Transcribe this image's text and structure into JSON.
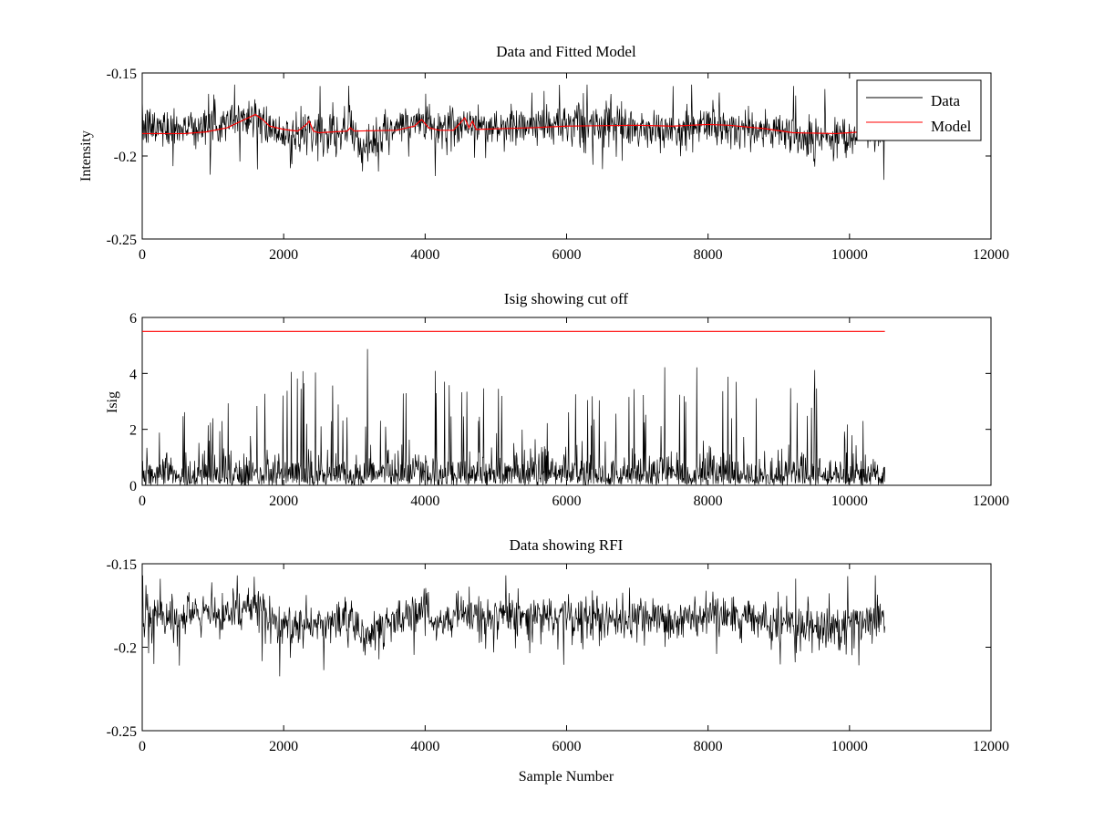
{
  "chart_data": [
    {
      "type": "line",
      "title": "Data and Fitted Model",
      "xlabel": "",
      "ylabel": "Intensity",
      "xlim": [
        0,
        12000
      ],
      "ylim": [
        -0.25,
        -0.15
      ],
      "y_reversed": true,
      "xticks": [
        0,
        2000,
        4000,
        6000,
        8000,
        10000,
        12000
      ],
      "yticks": [
        -0.25,
        -0.2,
        -0.15
      ],
      "grid": false,
      "legend": {
        "placement": "top-right",
        "entries": [
          "Data",
          "Model"
        ]
      },
      "series": [
        {
          "name": "Data",
          "color": "#000000",
          "style": "noise",
          "x_start": 0,
          "x_end": 10500,
          "sample_count": 10500,
          "center_profile": [
            [
              0,
              -0.183
            ],
            [
              1200,
              -0.181
            ],
            [
              1600,
              -0.175
            ],
            [
              1800,
              -0.184
            ],
            [
              2100,
              -0.19
            ],
            [
              2400,
              -0.186
            ],
            [
              2900,
              -0.184
            ],
            [
              3200,
              -0.193
            ],
            [
              3600,
              -0.183
            ],
            [
              3950,
              -0.18
            ],
            [
              4400,
              -0.184
            ],
            [
              4550,
              -0.178
            ],
            [
              4700,
              -0.183
            ],
            [
              6000,
              -0.181
            ],
            [
              7000,
              -0.184
            ],
            [
              7500,
              -0.185
            ],
            [
              8000,
              -0.181
            ],
            [
              8500,
              -0.184
            ],
            [
              9000,
              -0.185
            ],
            [
              9500,
              -0.19
            ],
            [
              10000,
              -0.186
            ],
            [
              10500,
              -0.183
            ]
          ],
          "peak_max": -0.157,
          "peak_min": -0.221
        },
        {
          "name": "Model",
          "color": "#ff0000",
          "points": [
            [
              0,
              -0.1865
            ],
            [
              600,
              -0.1865
            ],
            [
              900,
              -0.1855
            ],
            [
              1200,
              -0.183
            ],
            [
              1450,
              -0.178
            ],
            [
              1600,
              -0.175
            ],
            [
              1700,
              -0.178
            ],
            [
              1800,
              -0.182
            ],
            [
              2000,
              -0.184
            ],
            [
              2200,
              -0.185
            ],
            [
              2320,
              -0.181
            ],
            [
              2360,
              -0.179
            ],
            [
              2420,
              -0.185
            ],
            [
              2500,
              -0.186
            ],
            [
              2900,
              -0.185
            ],
            [
              2940,
              -0.183
            ],
            [
              3000,
              -0.185
            ],
            [
              3600,
              -0.1845
            ],
            [
              3850,
              -0.182
            ],
            [
              3950,
              -0.178
            ],
            [
              4050,
              -0.183
            ],
            [
              4200,
              -0.1845
            ],
            [
              4400,
              -0.1845
            ],
            [
              4500,
              -0.18
            ],
            [
              4560,
              -0.177
            ],
            [
              4620,
              -0.183
            ],
            [
              4670,
              -0.179
            ],
            [
              4720,
              -0.184
            ],
            [
              5500,
              -0.183
            ],
            [
              6000,
              -0.182
            ],
            [
              7000,
              -0.1815
            ],
            [
              7500,
              -0.182
            ],
            [
              8000,
              -0.181
            ],
            [
              8300,
              -0.1815
            ],
            [
              8800,
              -0.1835
            ],
            [
              9200,
              -0.186
            ],
            [
              9800,
              -0.1865
            ],
            [
              10000,
              -0.186
            ],
            [
              10500,
              -0.1845
            ]
          ]
        }
      ]
    },
    {
      "type": "line",
      "title": "Isig showing cut off",
      "xlabel": "",
      "ylabel": "Isig",
      "xlim": [
        0,
        12000
      ],
      "ylim": [
        0,
        6
      ],
      "xticks": [
        0,
        2000,
        4000,
        6000,
        8000,
        10000,
        12000
      ],
      "yticks": [
        0,
        2,
        4,
        6
      ],
      "grid": false,
      "series": [
        {
          "name": "Isig",
          "color": "#000000",
          "style": "spikes",
          "x_start": 0,
          "x_end": 10500,
          "sample_count": 10500,
          "peak_profile": [
            [
              0,
              2.7
            ],
            [
              1000,
              2.8
            ],
            [
              1500,
              4.1
            ],
            [
              2000,
              4.4
            ],
            [
              2400,
              4.3
            ],
            [
              3000,
              3.1
            ],
            [
              3200,
              5.1
            ],
            [
              3500,
              3.0
            ],
            [
              4000,
              4.0
            ],
            [
              4500,
              4.4
            ],
            [
              5000,
              3.5
            ],
            [
              6000,
              3.5
            ],
            [
              7000,
              3.7
            ],
            [
              7500,
              4.4
            ],
            [
              7800,
              5.0
            ],
            [
              8200,
              4.0
            ],
            [
              8600,
              4.1
            ],
            [
              9000,
              3.6
            ],
            [
              9600,
              4.5
            ],
            [
              10000,
              2.5
            ],
            [
              10500,
              2.2
            ]
          ]
        },
        {
          "name": "cut off",
          "color": "#ff0000",
          "points": [
            [
              0,
              5.5
            ],
            [
              10500,
              5.5
            ]
          ]
        }
      ]
    },
    {
      "type": "line",
      "title": "Data showing RFI",
      "xlabel": "Sample Number",
      "ylabel": "",
      "xlim": [
        0,
        12000
      ],
      "ylim": [
        -0.25,
        -0.15
      ],
      "y_reversed": true,
      "xticks": [
        0,
        2000,
        4000,
        6000,
        8000,
        10000,
        12000
      ],
      "yticks": [
        -0.25,
        -0.2,
        -0.15
      ],
      "grid": false,
      "series": [
        {
          "name": "Data",
          "color": "#000000",
          "style": "noise",
          "x_start": 0,
          "x_end": 10500,
          "sample_count": 10500,
          "center_profile": [
            [
              0,
              -0.183
            ],
            [
              1200,
              -0.181
            ],
            [
              1600,
              -0.175
            ],
            [
              1800,
              -0.184
            ],
            [
              2100,
              -0.19
            ],
            [
              2400,
              -0.186
            ],
            [
              2900,
              -0.184
            ],
            [
              3200,
              -0.193
            ],
            [
              3600,
              -0.183
            ],
            [
              3950,
              -0.18
            ],
            [
              4400,
              -0.184
            ],
            [
              4550,
              -0.178
            ],
            [
              4700,
              -0.183
            ],
            [
              6000,
              -0.181
            ],
            [
              7000,
              -0.184
            ],
            [
              7500,
              -0.185
            ],
            [
              8000,
              -0.181
            ],
            [
              8500,
              -0.184
            ],
            [
              9000,
              -0.185
            ],
            [
              9500,
              -0.19
            ],
            [
              10000,
              -0.186
            ],
            [
              10500,
              -0.183
            ]
          ],
          "peak_max": -0.157,
          "peak_min": -0.221
        }
      ]
    }
  ]
}
